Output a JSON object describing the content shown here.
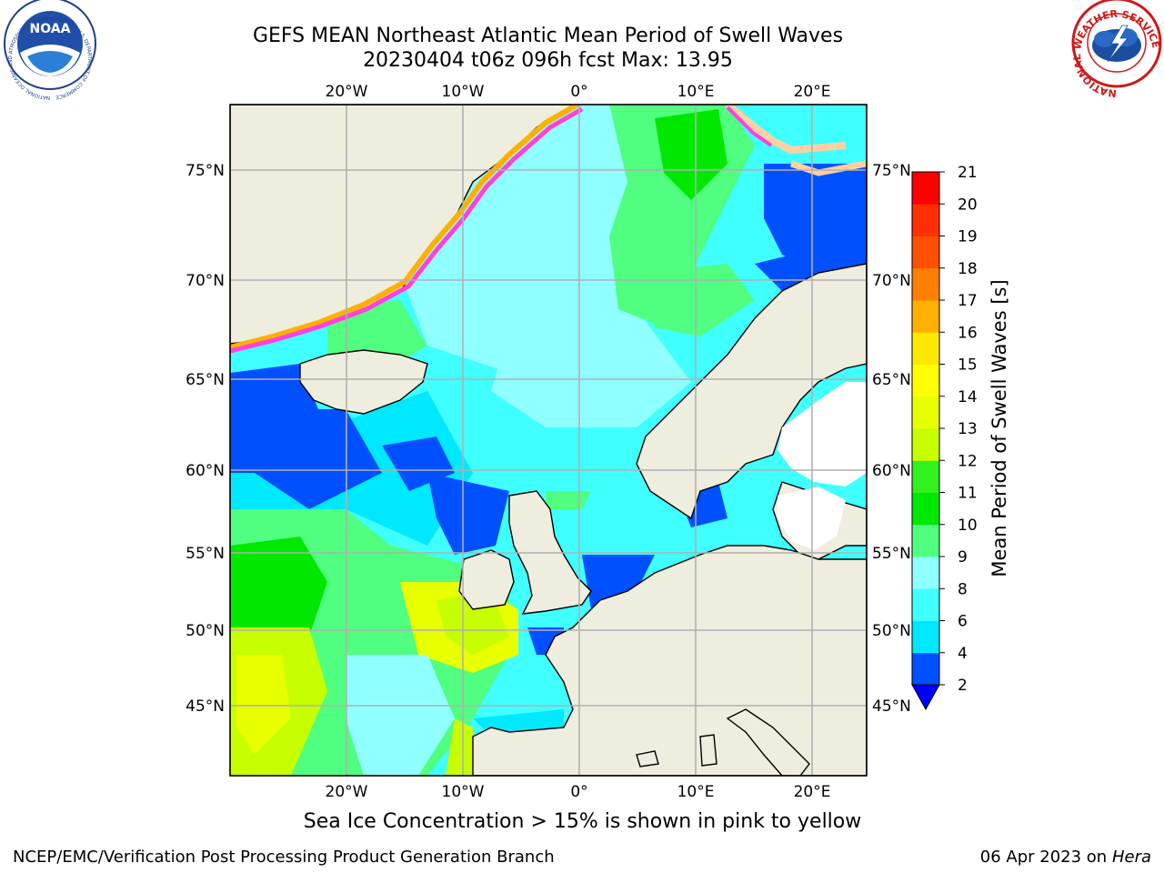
{
  "header": {
    "title_line1": "GEFS MEAN Northeast Atlantic Mean Period of Swell Waves",
    "title_line2": "20230404 t06z 096h fcst   Max: 13.95"
  },
  "logos": {
    "noaa_text": "NOAA",
    "noaa_ring_text": "NATIONAL OCEANIC AND ATMOSPHERIC ADMINISTRATION · U.S. DEPARTMENT OF COMMERCE",
    "nws_ring_text": "NATIONAL WEATHER SERVICE"
  },
  "map": {
    "lon_labels": [
      "20°W",
      "10°W",
      "0°",
      "10°E",
      "20°E"
    ],
    "lat_labels": [
      "75°N",
      "70°N",
      "65°N",
      "60°N",
      "55°N",
      "50°N",
      "45°N"
    ],
    "colors": {
      "land": "#efedde",
      "grid": "#b0b0b0",
      "coast": "#000000"
    }
  },
  "colorbar": {
    "label": "Mean Period of Swell Waves [s]",
    "ticks": [
      "2",
      "4",
      "6",
      "8",
      "9",
      "10",
      "11",
      "12",
      "13",
      "14",
      "15",
      "16",
      "17",
      "18",
      "19",
      "20",
      "21"
    ],
    "bins": [
      {
        "from": 2,
        "to": 4,
        "color": "#0050ff"
      },
      {
        "from": 4,
        "to": 6,
        "color": "#00e8ff"
      },
      {
        "from": 6,
        "to": 8,
        "color": "#40ffff"
      },
      {
        "from": 8,
        "to": 9,
        "color": "#90ffff"
      },
      {
        "from": 9,
        "to": 10,
        "color": "#50ff80"
      },
      {
        "from": 10,
        "to": 11,
        "color": "#00e800"
      },
      {
        "from": 11,
        "to": 12,
        "color": "#30f020"
      },
      {
        "from": 12,
        "to": 13,
        "color": "#c8ff00"
      },
      {
        "from": 13,
        "to": 14,
        "color": "#e8ff00"
      },
      {
        "from": 14,
        "to": 15,
        "color": "#ffff00"
      },
      {
        "from": 15,
        "to": 16,
        "color": "#ffe800"
      },
      {
        "from": 16,
        "to": 17,
        "color": "#ffb000"
      },
      {
        "from": 17,
        "to": 18,
        "color": "#ff8000"
      },
      {
        "from": 18,
        "to": 19,
        "color": "#ff5000"
      },
      {
        "from": 19,
        "to": 20,
        "color": "#ff3000"
      },
      {
        "from": 20,
        "to": 21,
        "color": "#ff0000"
      }
    ],
    "under_color": "#0000ff"
  },
  "footnote": "Sea Ice Concentration > 15% is shown in pink to yellow",
  "footer": {
    "left": "NCEP/EMC/Verification Post Processing Product Generation Branch",
    "date": "06 Apr 2023 on",
    "machine": "Hera"
  }
}
